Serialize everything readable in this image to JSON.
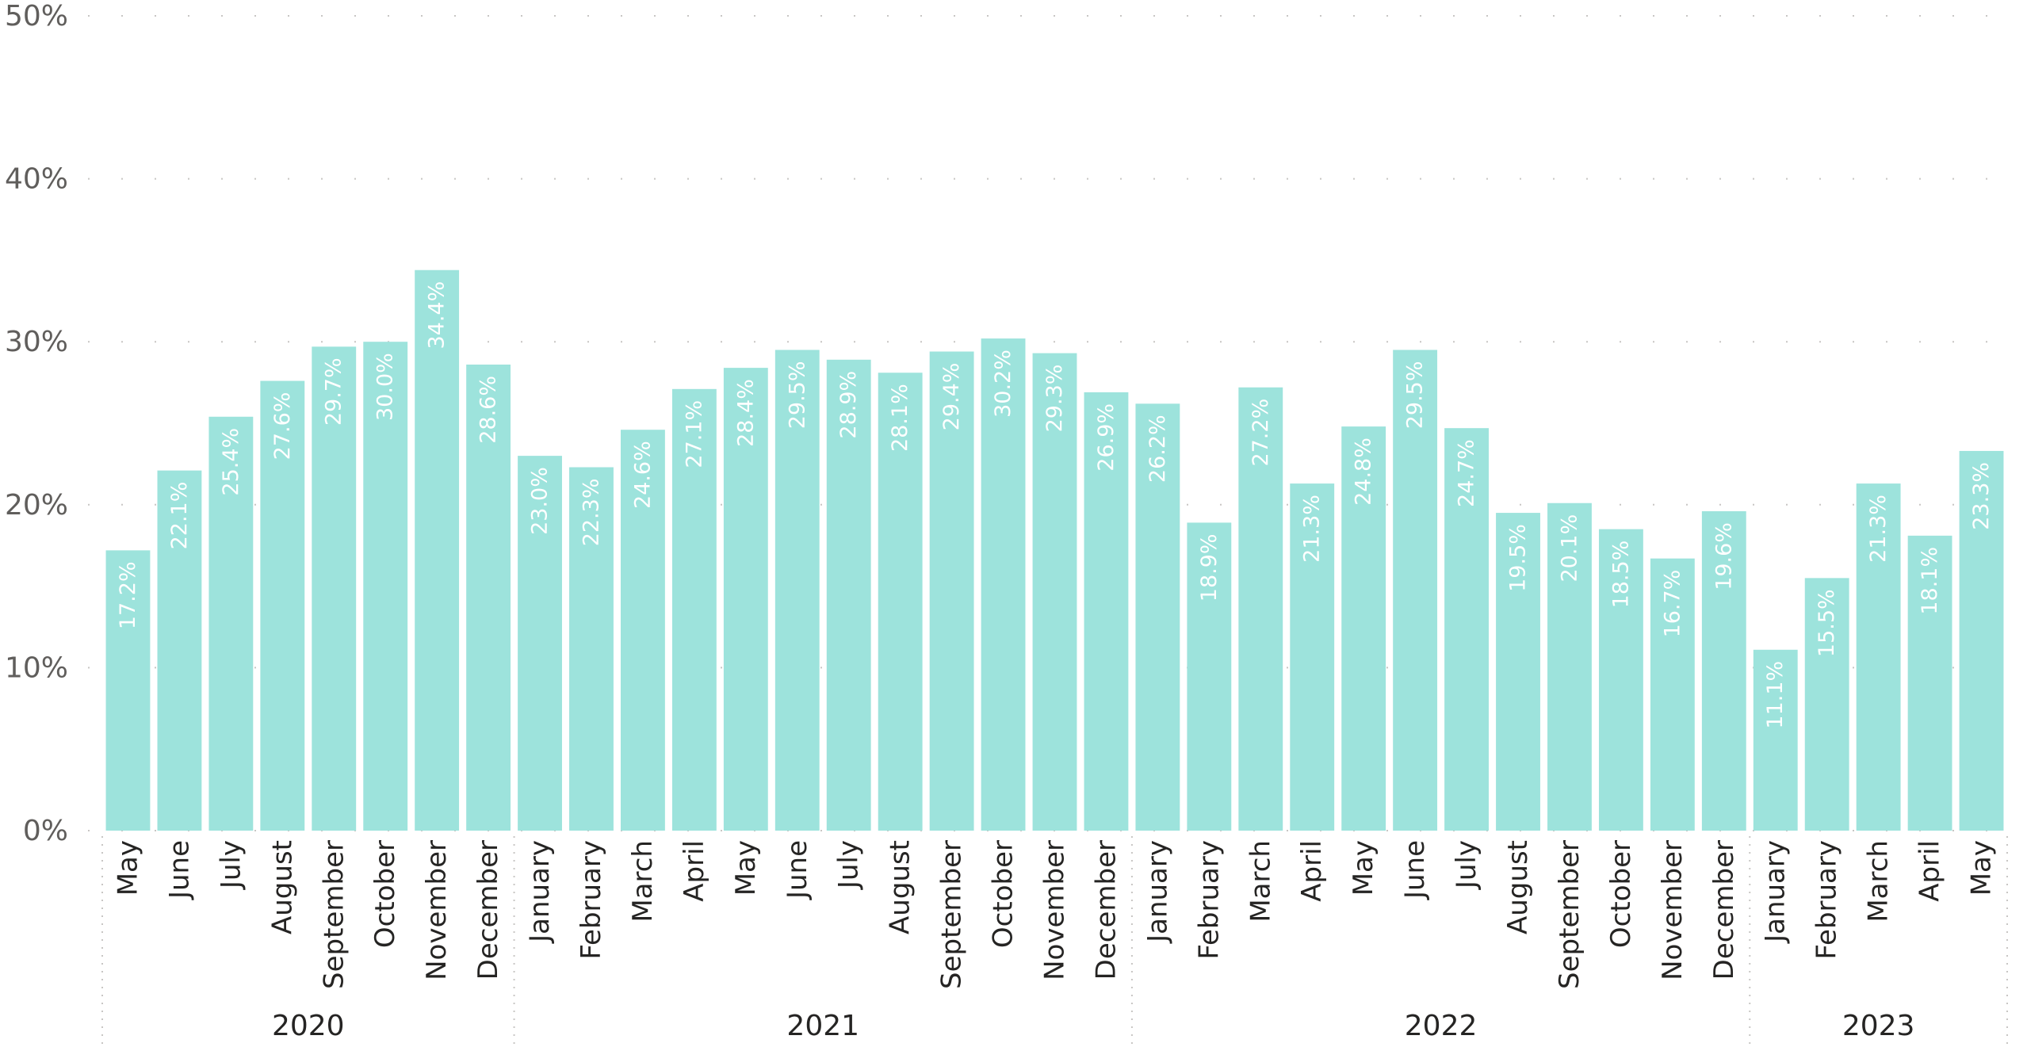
{
  "chart_data": {
    "type": "bar",
    "categories": [
      "May",
      "June",
      "July",
      "August",
      "September",
      "October",
      "November",
      "December",
      "January",
      "February",
      "March",
      "April",
      "May",
      "June",
      "July",
      "August",
      "September",
      "October",
      "November",
      "December",
      "January",
      "February",
      "March",
      "April",
      "May",
      "June",
      "July",
      "August",
      "September",
      "October",
      "November",
      "December",
      "January",
      "February",
      "March",
      "April",
      "May"
    ],
    "groups": [
      {
        "label": "2020",
        "count": 8
      },
      {
        "label": "2021",
        "count": 12
      },
      {
        "label": "2022",
        "count": 12
      },
      {
        "label": "2023",
        "count": 5
      }
    ],
    "values": [
      17.2,
      22.1,
      25.4,
      27.6,
      29.7,
      30.0,
      34.4,
      28.6,
      23.0,
      22.3,
      24.6,
      27.1,
      28.4,
      29.5,
      28.9,
      28.1,
      29.4,
      30.2,
      29.3,
      26.9,
      26.2,
      18.9,
      27.2,
      21.3,
      24.8,
      29.5,
      24.7,
      19.5,
      20.1,
      18.5,
      16.7,
      19.6,
      11.1,
      15.5,
      21.3,
      18.1,
      23.3
    ],
    "data_labels": [
      "17.2%",
      "22.1%",
      "25.4%",
      "27.6%",
      "29.7%",
      "30.0%",
      "34.4%",
      "28.6%",
      "23.0%",
      "22.3%",
      "24.6%",
      "27.1%",
      "28.4%",
      "29.5%",
      "28.9%",
      "28.1%",
      "29.4%",
      "30.2%",
      "29.3%",
      "26.9%",
      "26.2%",
      "18.9%",
      "27.2%",
      "21.3%",
      "24.8%",
      "29.5%",
      "24.7%",
      "19.5%",
      "20.1%",
      "18.5%",
      "16.7%",
      "19.6%",
      "11.1%",
      "15.5%",
      "21.3%",
      "18.1%",
      "23.3%"
    ],
    "yticks": [
      0,
      10,
      20,
      30,
      40,
      50
    ],
    "ytick_labels": [
      "0%",
      "10%",
      "20%",
      "30%",
      "40%",
      "50%"
    ],
    "ylim": [
      0,
      50
    ],
    "title": "",
    "xlabel": "",
    "ylabel": "",
    "grid": true,
    "legend": "none",
    "bar_color": "#9de3dc",
    "label_color": "#ffffff"
  }
}
